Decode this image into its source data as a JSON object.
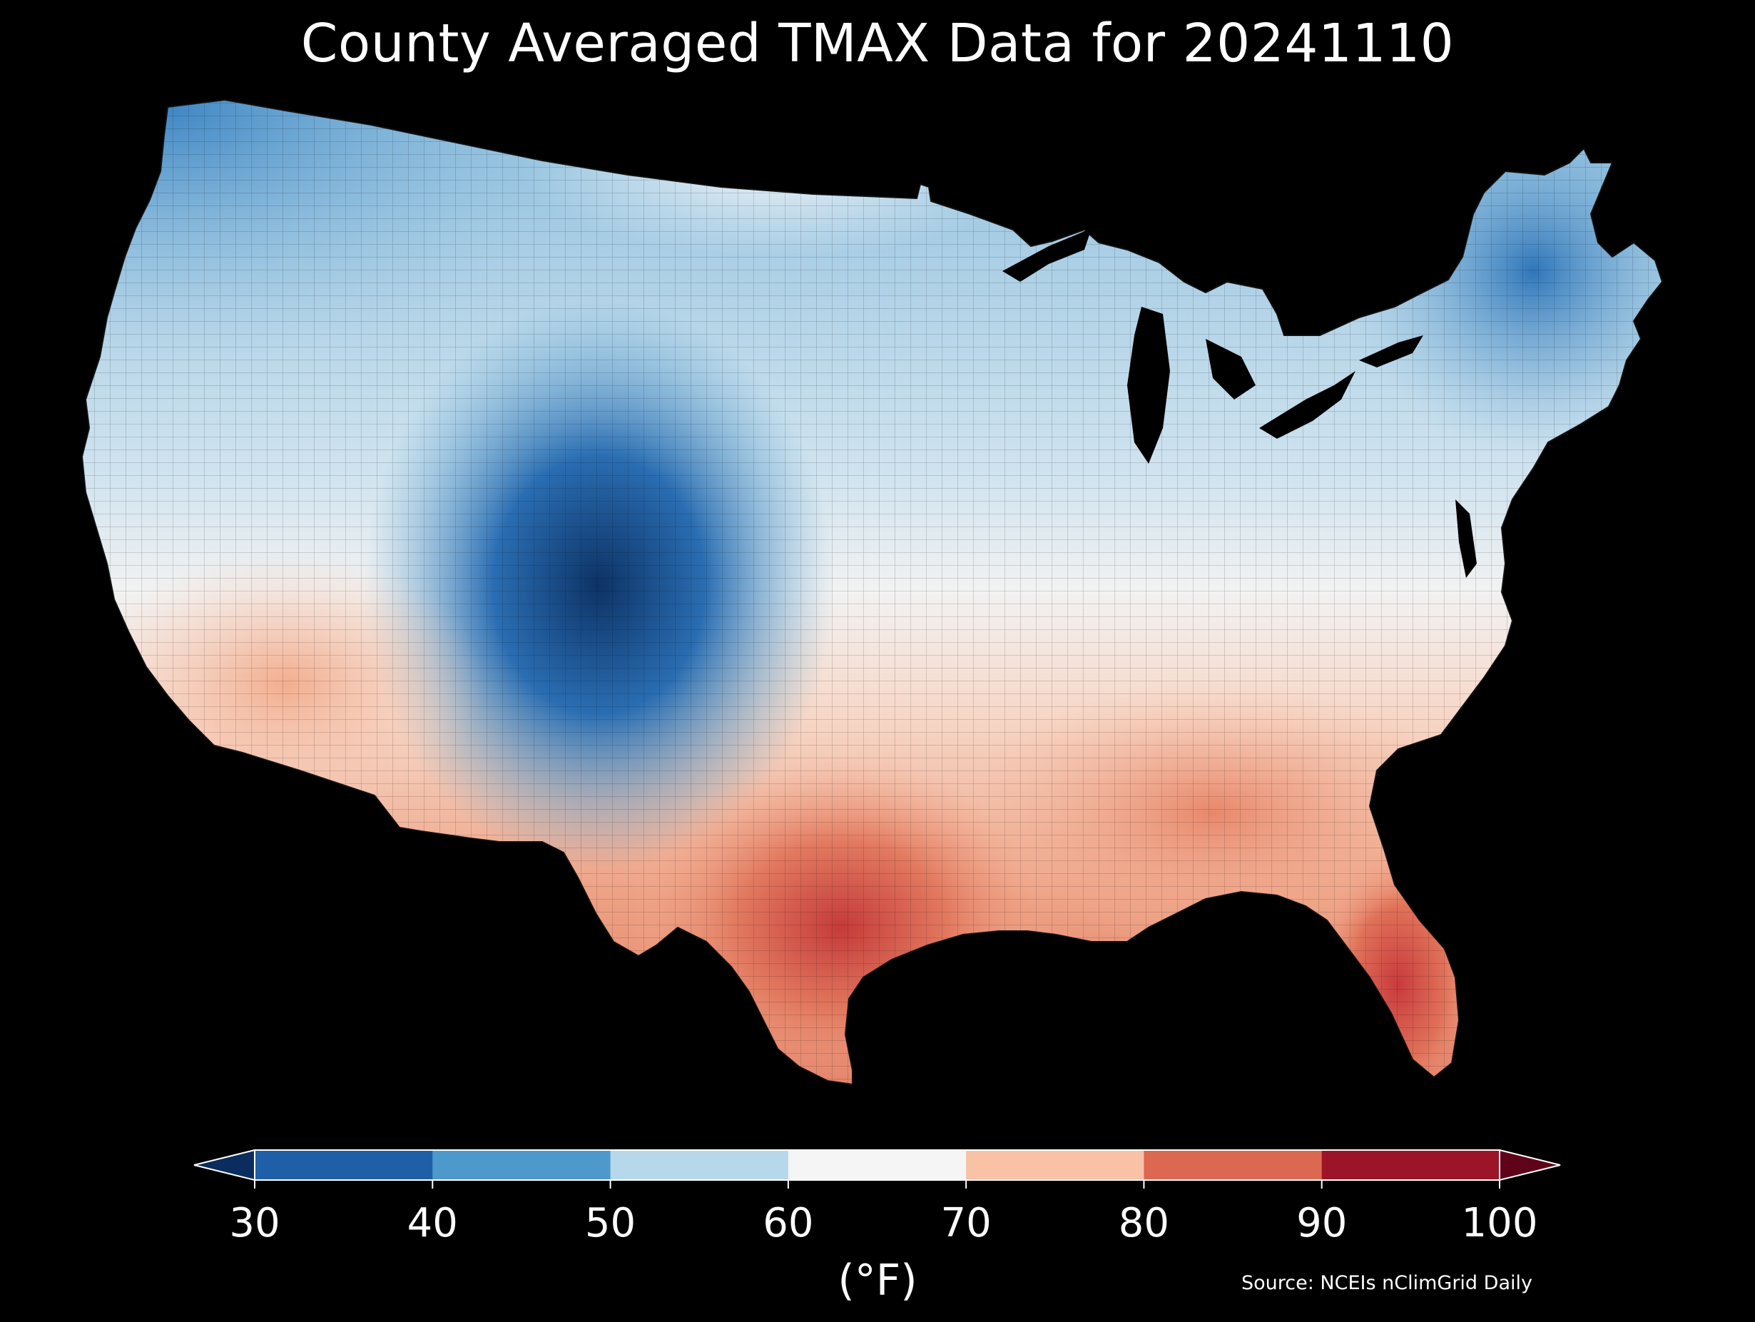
{
  "title": "County Averaged TMAX Data for 20241110",
  "colorbar": {
    "ticks": [
      "30",
      "40",
      "50",
      "60",
      "70",
      "80",
      "90",
      "100"
    ],
    "units": "(°F)",
    "colors": {
      "below": "#0b2d5e",
      "bins": [
        "#1f5fa7",
        "#4d99cb",
        "#b6d8ea",
        "#f6f5f5",
        "#f9c1a5",
        "#dd6851",
        "#9b1428"
      ],
      "above": "#5e0319"
    },
    "extend": "both"
  },
  "source": "Source: NCEIs nClimGrid Daily",
  "map": {
    "region": "contiguous-united-states",
    "units": "county",
    "variable": "TMAX",
    "regions": [
      {
        "name": "pacific-northwest",
        "level": 47
      },
      {
        "name": "northern-rockies",
        "level": 43
      },
      {
        "name": "northern-plains",
        "level": 58
      },
      {
        "name": "colorado-front-range",
        "level": 32
      },
      {
        "name": "great-lakes",
        "level": 52
      },
      {
        "name": "new-england",
        "level": 42
      },
      {
        "name": "southern-plains",
        "level": 66
      },
      {
        "name": "southeast",
        "level": 78
      },
      {
        "name": "gulf-coast-texas",
        "level": 85
      },
      {
        "name": "florida-peninsula",
        "level": 86
      },
      {
        "name": "desert-southwest",
        "level": 73
      }
    ]
  }
}
